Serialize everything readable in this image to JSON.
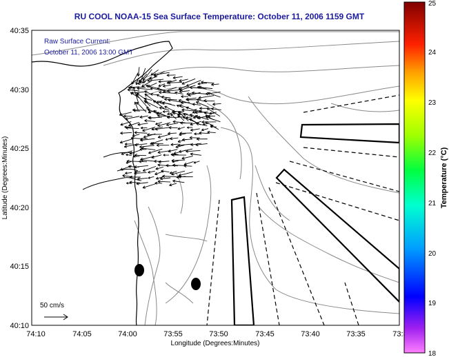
{
  "title": "RU COOL  NOAA-15  Sea Surface Temperature:  October 11, 2006 1159 GMT",
  "legend": {
    "line1": "Raw Surface Current:",
    "line2": "October 11, 2006 13:00 GMT",
    "scale_label": "50 cm/s"
  },
  "axes": {
    "xlabel": "Longitude (Degrees:Minutes)",
    "ylabel": "Latitude (Degrees:Minutes)",
    "xticks": [
      "74:10",
      "74:05",
      "74:00",
      "73:55",
      "73:50",
      "73:45",
      "73:40",
      "73:35",
      "73:3"
    ],
    "yticks": [
      "40:35",
      "40:30",
      "40:25",
      "40:20",
      "40:15",
      "40:10"
    ]
  },
  "colorbar": {
    "label": "Temperature (°C)",
    "ticks": [
      "25",
      "24",
      "23",
      "22",
      "21",
      "20",
      "19",
      "18"
    ],
    "min": 18,
    "max": 25
  },
  "colors": {
    "title": "#1a1aa0",
    "coast": "#000000",
    "bathymetry": "#888888"
  }
}
